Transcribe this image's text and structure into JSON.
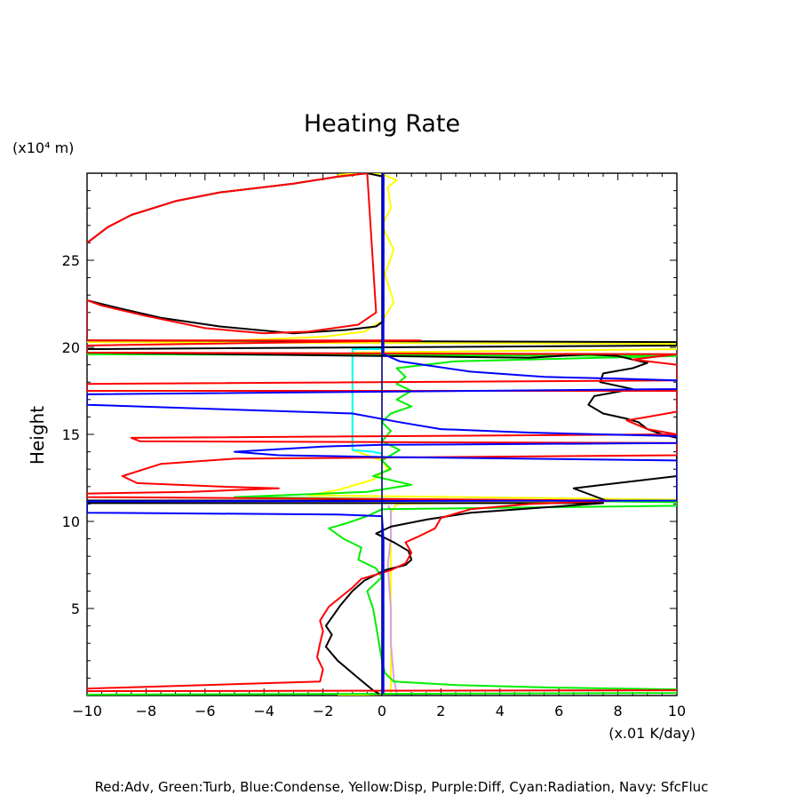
{
  "chart_data": {
    "type": "line",
    "title": "Heating Rate",
    "ylabel": "Height",
    "yunit": "(x10⁴ m)",
    "xunit": "(x.01 K/day)",
    "xlim": [
      -10,
      10
    ],
    "ylim": [
      0,
      30
    ],
    "xticks": [
      -10,
      -8,
      -6,
      -4,
      -2,
      0,
      2,
      4,
      6,
      8,
      10
    ],
    "yticks": [
      5,
      10,
      15,
      20,
      25
    ],
    "legend_text": "Red:Adv, Green:Turb, Blue:Condense, Yellow:Disp, Purple:Diff, Cyan:Radiation, Navy: SfcFluc",
    "legend_position": "bottom",
    "colors": {
      "black": "#000000",
      "red": "#ff0000",
      "green": "#00ee00",
      "blue": "#0000ff",
      "yellow": "#ffff00",
      "purple": "#dda0dd",
      "cyan": "#00ffff",
      "navy": "#000080"
    },
    "series": [
      {
        "color_key": "black",
        "points": [
          [
            -10,
            26.0
          ],
          [
            -9.3,
            26.9
          ],
          [
            -8.5,
            27.6
          ],
          [
            -7.0,
            28.4
          ],
          [
            -5.5,
            28.9
          ],
          [
            -3.0,
            29.4
          ],
          [
            -1.5,
            29.8
          ],
          [
            -0.5,
            30.0
          ],
          [
            0.05,
            29.8
          ],
          [
            0.05,
            24.0
          ],
          [
            0.05,
            21.5
          ],
          [
            -0.2,
            21.2
          ],
          [
            -1.2,
            21.0
          ],
          [
            -3.0,
            20.8
          ],
          [
            -5.5,
            21.2
          ],
          [
            -7.5,
            21.7
          ],
          [
            -8.8,
            22.2
          ],
          [
            -10,
            22.7
          ],
          [
            -10,
            20.4
          ],
          [
            10,
            20.3
          ],
          [
            10,
            20.1
          ],
          [
            -10,
            19.9
          ],
          [
            -10,
            19.7
          ],
          [
            0.0,
            19.5
          ],
          [
            5.0,
            19.4
          ],
          [
            7.0,
            19.6
          ],
          [
            8.0,
            19.5
          ],
          [
            9.0,
            19.1
          ],
          [
            8.5,
            18.8
          ],
          [
            7.5,
            18.5
          ],
          [
            7.4,
            18.0
          ],
          [
            8.5,
            17.6
          ],
          [
            7.2,
            17.2
          ],
          [
            7.0,
            16.7
          ],
          [
            7.5,
            16.2
          ],
          [
            8.3,
            15.9
          ],
          [
            8.7,
            15.7
          ],
          [
            9.0,
            15.3
          ],
          [
            9.5,
            15.0
          ],
          [
            10,
            14.8
          ],
          [
            10,
            12.6
          ],
          [
            7.5,
            12.1
          ],
          [
            6.5,
            11.9
          ],
          [
            7.6,
            11.2
          ],
          [
            -10,
            11.2
          ],
          [
            -10,
            11.05
          ],
          [
            7.5,
            11.05
          ],
          [
            5.5,
            10.8
          ],
          [
            3.0,
            10.5
          ],
          [
            1.5,
            10.1
          ],
          [
            0.3,
            9.7
          ],
          [
            -0.2,
            9.3
          ],
          [
            0.4,
            8.8
          ],
          [
            0.9,
            8.3
          ],
          [
            1.0,
            7.8
          ],
          [
            0.8,
            7.5
          ],
          [
            0.1,
            7.2
          ],
          [
            -0.6,
            6.6
          ],
          [
            -1.0,
            6.0
          ],
          [
            -1.4,
            5.2
          ],
          [
            -1.9,
            4.0
          ],
          [
            -1.7,
            3.5
          ],
          [
            -1.9,
            2.8
          ],
          [
            -1.5,
            2.0
          ],
          [
            -0.8,
            1.0
          ],
          [
            -0.3,
            0.3
          ],
          [
            -0.1,
            0.1
          ]
        ]
      },
      {
        "color_key": "red",
        "points": [
          [
            -10,
            26.0
          ],
          [
            -9.3,
            26.9
          ],
          [
            -8.5,
            27.6
          ],
          [
            -7.0,
            28.4
          ],
          [
            -5.5,
            28.9
          ],
          [
            -3.0,
            29.4
          ],
          [
            -1.5,
            29.8
          ],
          [
            -0.5,
            30.0
          ],
          [
            -0.2,
            22.0
          ],
          [
            -0.8,
            21.3
          ],
          [
            -2.5,
            20.9
          ],
          [
            -4.0,
            20.8
          ],
          [
            -6.0,
            21.1
          ],
          [
            -8.0,
            21.8
          ],
          [
            -9.5,
            22.4
          ],
          [
            -10,
            22.7
          ],
          [
            -10,
            20.4
          ],
          [
            1.3,
            20.4
          ],
          [
            -10,
            20.1
          ],
          [
            -10,
            19.7
          ],
          [
            10,
            19.6
          ],
          [
            8.5,
            19.3
          ],
          [
            10,
            19.0
          ],
          [
            10,
            18.1
          ],
          [
            -10,
            17.9
          ],
          [
            -10,
            17.5
          ],
          [
            10,
            17.5
          ],
          [
            10,
            16.3
          ],
          [
            9.0,
            16.0
          ],
          [
            8.3,
            15.8
          ],
          [
            9.0,
            15.3
          ],
          [
            10,
            15.0
          ],
          [
            -8.5,
            14.8
          ],
          [
            -8.2,
            14.6
          ],
          [
            10,
            14.5
          ],
          [
            10,
            13.8
          ],
          [
            -5.0,
            13.6
          ],
          [
            -7.5,
            13.3
          ],
          [
            -8.8,
            12.6
          ],
          [
            -8.3,
            12.2
          ],
          [
            -5.5,
            12.0
          ],
          [
            -3.5,
            11.9
          ],
          [
            -6.5,
            11.7
          ],
          [
            -10,
            11.6
          ],
          [
            -10,
            11.4
          ],
          [
            8.0,
            11.2
          ],
          [
            5.0,
            11.0
          ],
          [
            3.0,
            10.7
          ],
          [
            2.0,
            10.2
          ],
          [
            1.8,
            9.6
          ],
          [
            1.2,
            9.1
          ],
          [
            0.8,
            8.8
          ],
          [
            1.0,
            8.2
          ],
          [
            0.8,
            7.6
          ],
          [
            0.3,
            7.2
          ],
          [
            -0.7,
            6.7
          ],
          [
            -1.0,
            6.2
          ],
          [
            -1.8,
            5.1
          ],
          [
            -2.1,
            4.3
          ],
          [
            -2.0,
            3.7
          ],
          [
            -2.1,
            3.0
          ],
          [
            -2.2,
            2.2
          ],
          [
            -2.0,
            1.5
          ],
          [
            -2.1,
            0.8
          ],
          [
            -10,
            0.4
          ],
          [
            -10,
            0.25
          ],
          [
            10,
            0.3
          ]
        ]
      },
      {
        "color_key": "green",
        "points": [
          [
            -10,
            19.6
          ],
          [
            10,
            19.5
          ],
          [
            2.5,
            19.2
          ],
          [
            0.5,
            18.8
          ],
          [
            0.8,
            18.3
          ],
          [
            0.5,
            17.9
          ],
          [
            1.0,
            17.5
          ],
          [
            0.5,
            17.0
          ],
          [
            1.0,
            16.6
          ],
          [
            0.3,
            16.2
          ],
          [
            0.0,
            15.7
          ],
          [
            0.3,
            15.2
          ],
          [
            0.0,
            14.6
          ],
          [
            0.6,
            14.1
          ],
          [
            0.0,
            13.5
          ],
          [
            0.3,
            13.0
          ],
          [
            -0.3,
            12.6
          ],
          [
            1.0,
            12.1
          ],
          [
            -0.5,
            11.7
          ],
          [
            -5.0,
            11.4
          ],
          [
            10,
            11.1
          ],
          [
            10,
            10.9
          ],
          [
            5.0,
            10.8
          ],
          [
            0.0,
            10.7
          ],
          [
            -0.5,
            10.3
          ],
          [
            -1.2,
            9.9
          ],
          [
            -1.8,
            9.6
          ],
          [
            -1.3,
            9.0
          ],
          [
            -0.7,
            8.5
          ],
          [
            -0.8,
            7.8
          ],
          [
            -0.2,
            7.3
          ],
          [
            0.0,
            6.8
          ],
          [
            -0.5,
            6.0
          ],
          [
            -0.3,
            5.0
          ],
          [
            -0.2,
            4.0
          ],
          [
            -0.1,
            3.0
          ],
          [
            0.0,
            2.0
          ],
          [
            0.1,
            1.3
          ],
          [
            0.4,
            0.8
          ],
          [
            2.5,
            0.6
          ],
          [
            6.0,
            0.45
          ],
          [
            10,
            0.35
          ],
          [
            10,
            0.15
          ],
          [
            -10,
            0.05
          ]
        ]
      },
      {
        "color_key": "blue",
        "points": [
          [
            0.05,
            30.0
          ],
          [
            0.05,
            20.5
          ],
          [
            0.05,
            19.6
          ],
          [
            0.6,
            19.2
          ],
          [
            3.0,
            18.6
          ],
          [
            5.5,
            18.3
          ],
          [
            8.0,
            18.2
          ],
          [
            10,
            18.1
          ],
          [
            10,
            17.6
          ],
          [
            -10,
            17.3
          ],
          [
            -10,
            16.7
          ],
          [
            -1.0,
            16.2
          ],
          [
            0.6,
            15.7
          ],
          [
            2.0,
            15.3
          ],
          [
            5.0,
            15.1
          ],
          [
            10,
            14.9
          ],
          [
            10,
            14.5
          ],
          [
            0.0,
            14.4
          ],
          [
            -2.0,
            14.3
          ],
          [
            -5.0,
            14.0
          ],
          [
            -3.5,
            13.8
          ],
          [
            0.0,
            13.7
          ],
          [
            10,
            13.5
          ],
          [
            10,
            11.2
          ],
          [
            -10,
            11.15
          ],
          [
            -10,
            10.5
          ],
          [
            -1.5,
            10.4
          ],
          [
            0.0,
            10.3
          ],
          [
            0.05,
            9.0
          ],
          [
            0.05,
            0.1
          ]
        ]
      },
      {
        "color_key": "yellow",
        "points": [
          [
            -1.5,
            29.9
          ],
          [
            -0.8,
            30.0
          ],
          [
            0.0,
            29.95
          ],
          [
            0.5,
            29.6
          ],
          [
            0.2,
            29.2
          ],
          [
            0.3,
            28.0
          ],
          [
            0.0,
            27.0
          ],
          [
            0.4,
            25.6
          ],
          [
            0.1,
            24.2
          ],
          [
            0.4,
            22.6
          ],
          [
            0.0,
            21.5
          ],
          [
            -0.6,
            20.9
          ],
          [
            -2.0,
            20.6
          ],
          [
            -5.0,
            20.4
          ],
          [
            -10,
            20.3
          ],
          [
            10,
            20.2
          ],
          [
            10,
            19.9
          ],
          [
            -1.0,
            19.7
          ],
          [
            -1.0,
            14.1
          ],
          [
            0.0,
            13.5
          ],
          [
            0.2,
            13.0
          ],
          [
            -0.3,
            12.4
          ],
          [
            -1.5,
            11.8
          ],
          [
            -2.5,
            11.5
          ],
          [
            10,
            11.25
          ],
          [
            0.5,
            11.0
          ],
          [
            0.3,
            10.5
          ],
          [
            0.3,
            0.1
          ],
          [
            -1.5,
            0.0
          ]
        ]
      },
      {
        "color_key": "purple",
        "points": [
          [
            0.2,
            10.9
          ],
          [
            0.3,
            10.7
          ],
          [
            0.3,
            9.0
          ],
          [
            0.2,
            7.5
          ],
          [
            0.3,
            5.0
          ],
          [
            0.3,
            3.0
          ],
          [
            0.4,
            1.0
          ],
          [
            0.5,
            0.1
          ]
        ]
      },
      {
        "color_key": "cyan",
        "points": [
          [
            0.0,
            19.9
          ],
          [
            -1.0,
            19.9
          ],
          [
            -1.0,
            14.1
          ],
          [
            -0.3,
            14.0
          ],
          [
            0.0,
            13.9
          ]
        ]
      },
      {
        "color_key": "navy",
        "points": [
          [
            0.0,
            30.0
          ],
          [
            0.0,
            0.0
          ]
        ]
      }
    ]
  }
}
